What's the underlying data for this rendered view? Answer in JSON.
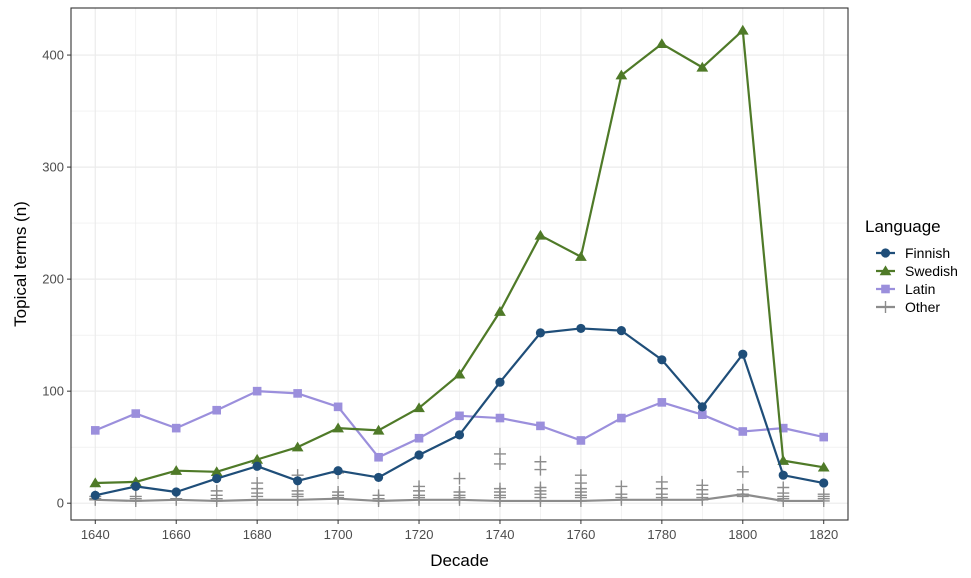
{
  "chart_data": {
    "type": "line",
    "title": "",
    "xlabel": "Decade",
    "ylabel": "Topical terms (n)",
    "xlim": [
      1634,
      1826
    ],
    "ylim": [
      -15,
      442
    ],
    "x_ticks": [
      1640,
      1660,
      1680,
      1700,
      1720,
      1740,
      1760,
      1780,
      1800,
      1820
    ],
    "y_ticks": [
      0,
      100,
      200,
      300,
      400
    ],
    "grid": true,
    "legend": {
      "title": "Language",
      "position": "right"
    },
    "x": [
      1640,
      1650,
      1660,
      1670,
      1680,
      1690,
      1700,
      1710,
      1720,
      1730,
      1740,
      1750,
      1760,
      1770,
      1780,
      1790,
      1800,
      1810,
      1820
    ],
    "series": [
      {
        "name": "Finnish",
        "marker": "circle",
        "color": "#1f4e79",
        "values": [
          7,
          15,
          10,
          22,
          33,
          20,
          29,
          23,
          43,
          61,
          108,
          152,
          156,
          154,
          128,
          86,
          133,
          25,
          18
        ]
      },
      {
        "name": "Swedish",
        "marker": "triangle",
        "color": "#4f7a28",
        "values": [
          18,
          19,
          29,
          28,
          39,
          50,
          67,
          65,
          85,
          115,
          171,
          239,
          220,
          382,
          410,
          389,
          422,
          38,
          32
        ]
      },
      {
        "name": "Latin",
        "marker": "square",
        "color": "#9b8fdc",
        "values": [
          65,
          80,
          67,
          83,
          100,
          98,
          86,
          41,
          58,
          78,
          76,
          69,
          56,
          76,
          90,
          79,
          64,
          67,
          59
        ]
      },
      {
        "name": "Other",
        "marker": "plus",
        "color": "#8c8c8c",
        "values": [
          3,
          2,
          3,
          2,
          3,
          3,
          4,
          2,
          3,
          3,
          2,
          2,
          2,
          3,
          3,
          3,
          8,
          2,
          2
        ],
        "extra_points": [
          [
            1640,
            6
          ],
          [
            1640,
            4
          ],
          [
            1650,
            6
          ],
          [
            1650,
            4
          ],
          [
            1660,
            4
          ],
          [
            1670,
            11
          ],
          [
            1670,
            7
          ],
          [
            1670,
            4
          ],
          [
            1680,
            18
          ],
          [
            1680,
            13
          ],
          [
            1680,
            9
          ],
          [
            1680,
            6
          ],
          [
            1690,
            25
          ],
          [
            1690,
            11
          ],
          [
            1690,
            8
          ],
          [
            1690,
            6
          ],
          [
            1700,
            27
          ],
          [
            1700,
            10
          ],
          [
            1700,
            7
          ],
          [
            1700,
            5
          ],
          [
            1710,
            7
          ],
          [
            1710,
            4
          ],
          [
            1720,
            15
          ],
          [
            1720,
            11
          ],
          [
            1720,
            7
          ],
          [
            1720,
            5
          ],
          [
            1730,
            22
          ],
          [
            1730,
            10
          ],
          [
            1730,
            7
          ],
          [
            1730,
            5
          ],
          [
            1740,
            44
          ],
          [
            1740,
            35
          ],
          [
            1740,
            13
          ],
          [
            1740,
            10
          ],
          [
            1740,
            7
          ],
          [
            1740,
            5
          ],
          [
            1750,
            37
          ],
          [
            1750,
            30
          ],
          [
            1750,
            14
          ],
          [
            1750,
            11
          ],
          [
            1750,
            8
          ],
          [
            1750,
            5
          ],
          [
            1760,
            25
          ],
          [
            1760,
            18
          ],
          [
            1760,
            13
          ],
          [
            1760,
            10
          ],
          [
            1760,
            7
          ],
          [
            1760,
            5
          ],
          [
            1770,
            15
          ],
          [
            1770,
            8
          ],
          [
            1770,
            5
          ],
          [
            1780,
            19
          ],
          [
            1780,
            13
          ],
          [
            1780,
            8
          ],
          [
            1780,
            5
          ],
          [
            1790,
            16
          ],
          [
            1790,
            12
          ],
          [
            1790,
            8
          ],
          [
            1790,
            5
          ],
          [
            1800,
            28
          ],
          [
            1800,
            12
          ],
          [
            1800,
            6
          ],
          [
            1810,
            14
          ],
          [
            1810,
            9
          ],
          [
            1810,
            6
          ],
          [
            1810,
            4
          ],
          [
            1820,
            8
          ],
          [
            1820,
            6
          ],
          [
            1820,
            4
          ]
        ]
      }
    ]
  }
}
